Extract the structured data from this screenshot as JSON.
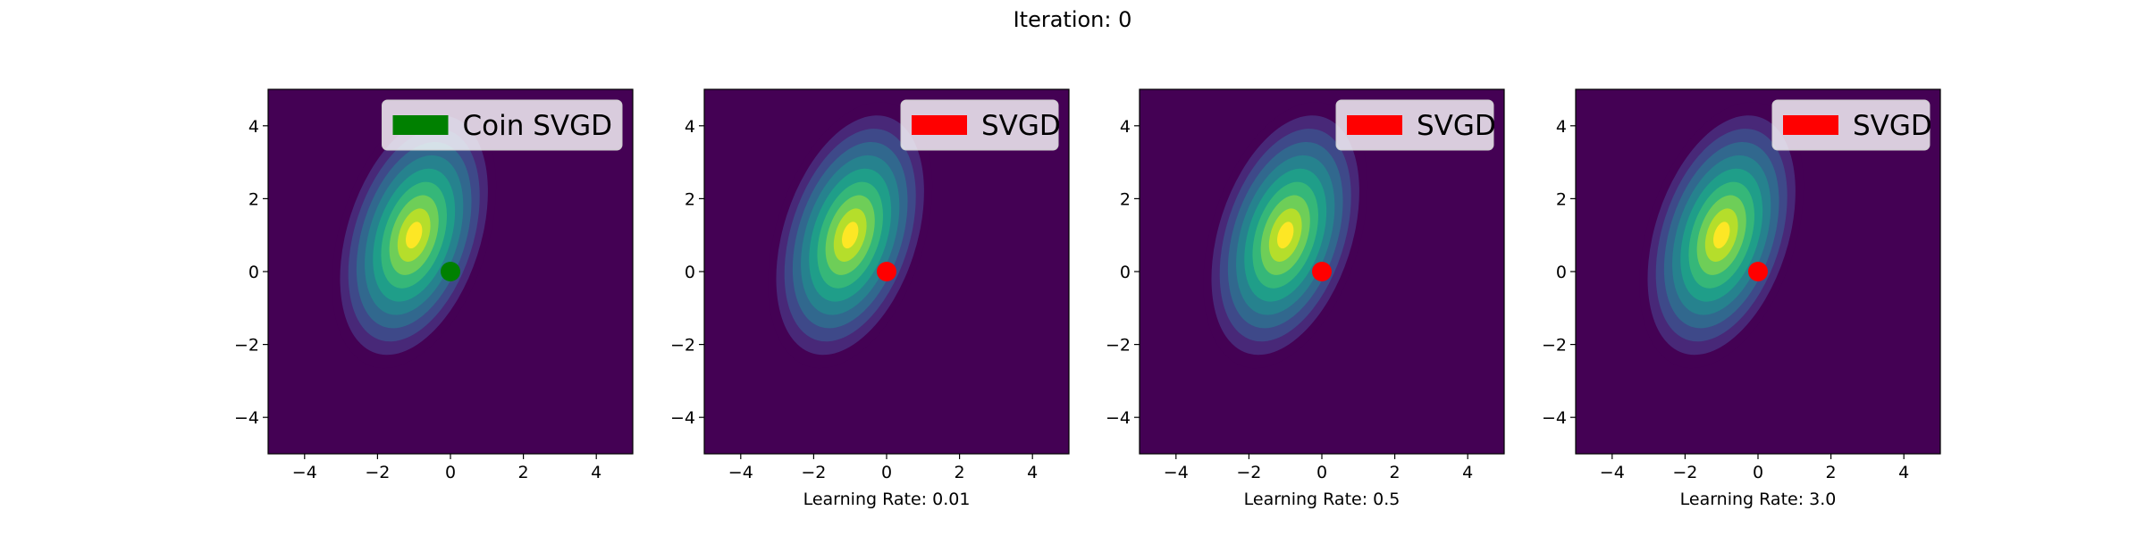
{
  "figure": {
    "title": "Iteration: 0"
  },
  "colors": {
    "background": "#440154",
    "coin": "#008000",
    "svgd": "#ff0000"
  },
  "chart_data": [
    {
      "type": "scatter",
      "subtype": "contour-density-with-particles",
      "title": "",
      "xlabel": "",
      "ylabel": "",
      "xlim": [
        -5,
        5
      ],
      "ylim": [
        -5,
        5
      ],
      "xticks": [
        -4,
        -2,
        0,
        2,
        4
      ],
      "yticks": [
        -4,
        -2,
        0,
        2,
        4
      ],
      "xtick_labels": [
        "−4",
        "−2",
        "0",
        "2",
        "4"
      ],
      "ytick_labels": [
        "−4",
        "−2",
        "0",
        "2",
        "4"
      ],
      "grid": false,
      "legend_position": "top-right",
      "density": {
        "mean": [
          -1,
          1
        ],
        "std": [
          0.75,
          1.4
        ],
        "angle_deg": 18,
        "levels": 10,
        "colormap": "viridis"
      },
      "series": [
        {
          "name": "Coin SVGD",
          "color": "#008000",
          "points": [
            [
              0,
              0
            ]
          ]
        }
      ]
    },
    {
      "type": "scatter",
      "subtype": "contour-density-with-particles",
      "title": "",
      "xlabel": "Learning Rate: 0.01",
      "ylabel": "",
      "xlim": [
        -5,
        5
      ],
      "ylim": [
        -5,
        5
      ],
      "xticks": [
        -4,
        -2,
        0,
        2,
        4
      ],
      "yticks": [
        -4,
        -2,
        0,
        2,
        4
      ],
      "xtick_labels": [
        "−4",
        "−2",
        "0",
        "2",
        "4"
      ],
      "ytick_labels": [
        "−4",
        "−2",
        "0",
        "2",
        "4"
      ],
      "grid": false,
      "legend_position": "top-right",
      "density": {
        "mean": [
          -1,
          1
        ],
        "std": [
          0.75,
          1.4
        ],
        "angle_deg": 18,
        "levels": 10,
        "colormap": "viridis"
      },
      "series": [
        {
          "name": "SVGD",
          "color": "#ff0000",
          "points": [
            [
              0,
              0
            ]
          ]
        }
      ]
    },
    {
      "type": "scatter",
      "subtype": "contour-density-with-particles",
      "title": "",
      "xlabel": "Learning Rate: 0.5",
      "ylabel": "",
      "xlim": [
        -5,
        5
      ],
      "ylim": [
        -5,
        5
      ],
      "xticks": [
        -4,
        -2,
        0,
        2,
        4
      ],
      "yticks": [
        -4,
        -2,
        0,
        2,
        4
      ],
      "xtick_labels": [
        "−4",
        "−2",
        "0",
        "2",
        "4"
      ],
      "ytick_labels": [
        "−4",
        "−2",
        "0",
        "2",
        "4"
      ],
      "grid": false,
      "legend_position": "top-right",
      "density": {
        "mean": [
          -1,
          1
        ],
        "std": [
          0.75,
          1.4
        ],
        "angle_deg": 18,
        "levels": 10,
        "colormap": "viridis"
      },
      "series": [
        {
          "name": "SVGD",
          "color": "#ff0000",
          "points": [
            [
              0,
              0
            ]
          ]
        }
      ]
    },
    {
      "type": "scatter",
      "subtype": "contour-density-with-particles",
      "title": "",
      "xlabel": "Learning Rate: 3.0",
      "ylabel": "",
      "xlim": [
        -5,
        5
      ],
      "ylim": [
        -5,
        5
      ],
      "xticks": [
        -4,
        -2,
        0,
        2,
        4
      ],
      "yticks": [
        -4,
        -2,
        0,
        2,
        4
      ],
      "xtick_labels": [
        "−4",
        "−2",
        "0",
        "2",
        "4"
      ],
      "ytick_labels": [
        "−4",
        "−2",
        "0",
        "2",
        "4"
      ],
      "grid": false,
      "legend_position": "top-right",
      "density": {
        "mean": [
          -1,
          1
        ],
        "std": [
          0.75,
          1.4
        ],
        "angle_deg": 18,
        "levels": 10,
        "colormap": "viridis"
      },
      "series": [
        {
          "name": "SVGD",
          "color": "#ff0000",
          "points": [
            [
              0,
              0
            ]
          ]
        }
      ]
    }
  ]
}
